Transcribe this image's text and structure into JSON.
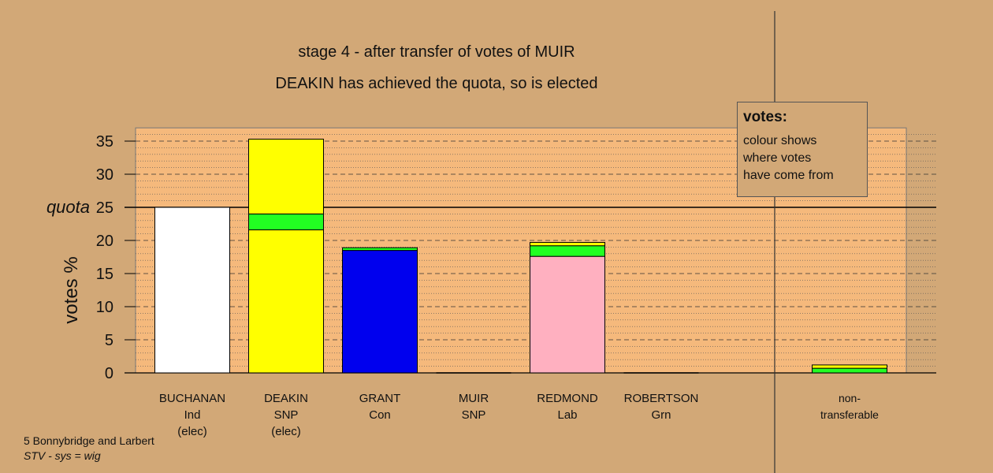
{
  "title": "stage 4 - after transfer of votes of MUIR",
  "subtitle": "DEAKIN has achieved the quota, so is elected",
  "legend": {
    "title": "votes:",
    "lines": [
      "colour shows",
      "where votes",
      "have come from"
    ]
  },
  "footer": {
    "line1": "5 Bonnybridge and Larbert",
    "line2": "STV - sys = wig"
  },
  "chart_data": {
    "type": "bar",
    "stacked": true,
    "ylabel": "votes %",
    "ylim": [
      0,
      37
    ],
    "yticks": [
      0,
      5,
      10,
      15,
      20,
      25,
      30,
      35
    ],
    "quota": {
      "label": "quota",
      "value": 25
    },
    "grid": "dashed major, dotted minor",
    "candidates": [
      {
        "name": "BUCHANAN",
        "party": "Ind",
        "status": "(elec)",
        "segments": [
          {
            "value": 25.0,
            "color": "#ffffff"
          }
        ]
      },
      {
        "name": "DEAKIN",
        "party": "SNP",
        "status": "(elec)",
        "segments": [
          {
            "value": 21.6,
            "color": "#ffff00"
          },
          {
            "value": 2.4,
            "color": "#22ff22"
          },
          {
            "value": 11.3,
            "color": "#ffff00"
          }
        ]
      },
      {
        "name": "GRANT",
        "party": "Con",
        "status": "",
        "segments": [
          {
            "value": 18.5,
            "color": "#0000ee"
          },
          {
            "value": 0.4,
            "color": "#22ff22"
          }
        ]
      },
      {
        "name": "MUIR",
        "party": "SNP",
        "status": "",
        "segments": []
      },
      {
        "name": "REDMOND",
        "party": "Lab",
        "status": "",
        "segments": [
          {
            "value": 17.6,
            "color": "#ffb0c0"
          },
          {
            "value": 1.6,
            "color": "#22ff22"
          },
          {
            "value": 0.5,
            "color": "#ffff00"
          }
        ]
      },
      {
        "name": "ROBERTSON",
        "party": "Grn",
        "status": "",
        "segments": []
      }
    ],
    "nontransferable": {
      "label_line1": "non-",
      "label_line2": "transferable",
      "segments": [
        {
          "value": 0.7,
          "color": "#22ff22"
        },
        {
          "value": 0.5,
          "color": "#ffff00"
        }
      ]
    },
    "colors": {
      "background": "#d2a877",
      "plot_area": "#f5b97c",
      "bar_outline": "#000000"
    }
  }
}
